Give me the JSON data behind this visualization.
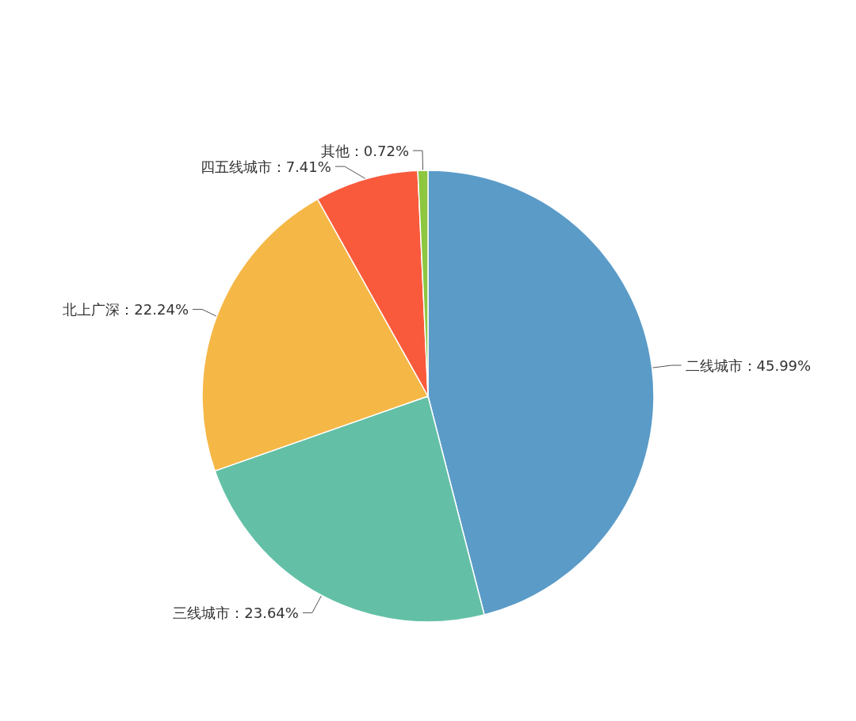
{
  "chart_data": {
    "type": "pie",
    "categories": [
      "二线城市",
      "三线城市",
      "北上广深",
      "四五线城市",
      "其他"
    ],
    "values": [
      45.99,
      23.64,
      22.24,
      7.41,
      0.72
    ],
    "colors": [
      "#5b9bc8",
      "#63c0a6",
      "#f5b746",
      "#fa5a3c",
      "#8dc63f"
    ],
    "data_labels": true,
    "value_labels": [
      "45.99%",
      "23.64%",
      "22.24%",
      "7.41%",
      "0.72%"
    ],
    "legend": false
  }
}
